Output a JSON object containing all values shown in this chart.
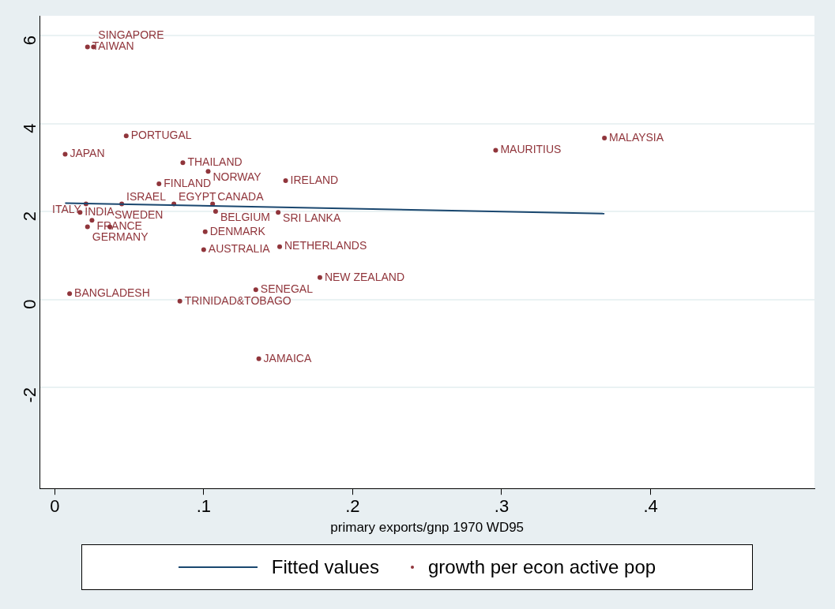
{
  "chart_data": {
    "type": "scatter",
    "xlabel": "primary exports/gnp 1970 WD95",
    "xlim": [
      -0.01,
      0.51
    ],
    "ylim": [
      -4.3,
      6.45
    ],
    "xticks": [
      {
        "value": 0,
        "label": "0"
      },
      {
        "value": 0.1,
        "label": ".1"
      },
      {
        "value": 0.2,
        "label": ".2"
      },
      {
        "value": 0.3,
        "label": ".3"
      },
      {
        "value": 0.4,
        "label": ".4"
      }
    ],
    "yticks": [
      -2,
      0,
      2,
      4,
      6
    ],
    "grid": "y",
    "legend": "bottom",
    "series": [
      {
        "name": "Fitted values",
        "type": "line",
        "marker": "none",
        "color": "#1a476f",
        "x": [
          0.007,
          0.369
        ],
        "values": [
          2.19,
          1.95
        ]
      },
      {
        "name": "growth per econ active pop",
        "marker": "circle",
        "color": "#90353b",
        "x": [
          0.022,
          0.026,
          0.048,
          0.007,
          0.086,
          0.103,
          0.155,
          0.07,
          0.296,
          0.369,
          0.021,
          0.045,
          0.08,
          0.106,
          0.017,
          0.108,
          0.15,
          0.025,
          0.022,
          0.037,
          0.101,
          0.1,
          0.151,
          0.178,
          0.135,
          0.01,
          0.084,
          0.137
        ],
        "values": [
          5.74,
          5.74,
          3.72,
          3.3,
          3.11,
          2.91,
          2.7,
          2.63,
          3.39,
          3.67,
          2.17,
          2.17,
          2.17,
          2.17,
          1.98,
          2.0,
          1.98,
          1.8,
          1.65,
          1.65,
          1.54,
          1.13,
          1.2,
          0.5,
          0.22,
          0.13,
          -0.04,
          -1.35
        ],
        "value_labels": [
          "TAIWAN",
          "SINGAPORE",
          "PORTUGAL",
          "JAPAN",
          "THAILAND",
          "NORWAY",
          "IRELAND",
          "FINLAND",
          "MAURITIUS",
          "MALAYSIA",
          "ITALY",
          "ISRAEL",
          "EGYPT",
          "CANADA",
          "INDIA",
          "BELGIUM",
          "SRI LANKA",
          "FRANCE",
          "GERMANY",
          "SWEDEN",
          "DENMARK",
          "AUSTRALIA",
          "NETHERLANDS",
          "NEW ZEALAND",
          "SENEGAL",
          "BANGLADESH",
          "TRINIDAD&TOBAGO",
          "JAMAICA"
        ]
      }
    ]
  }
}
